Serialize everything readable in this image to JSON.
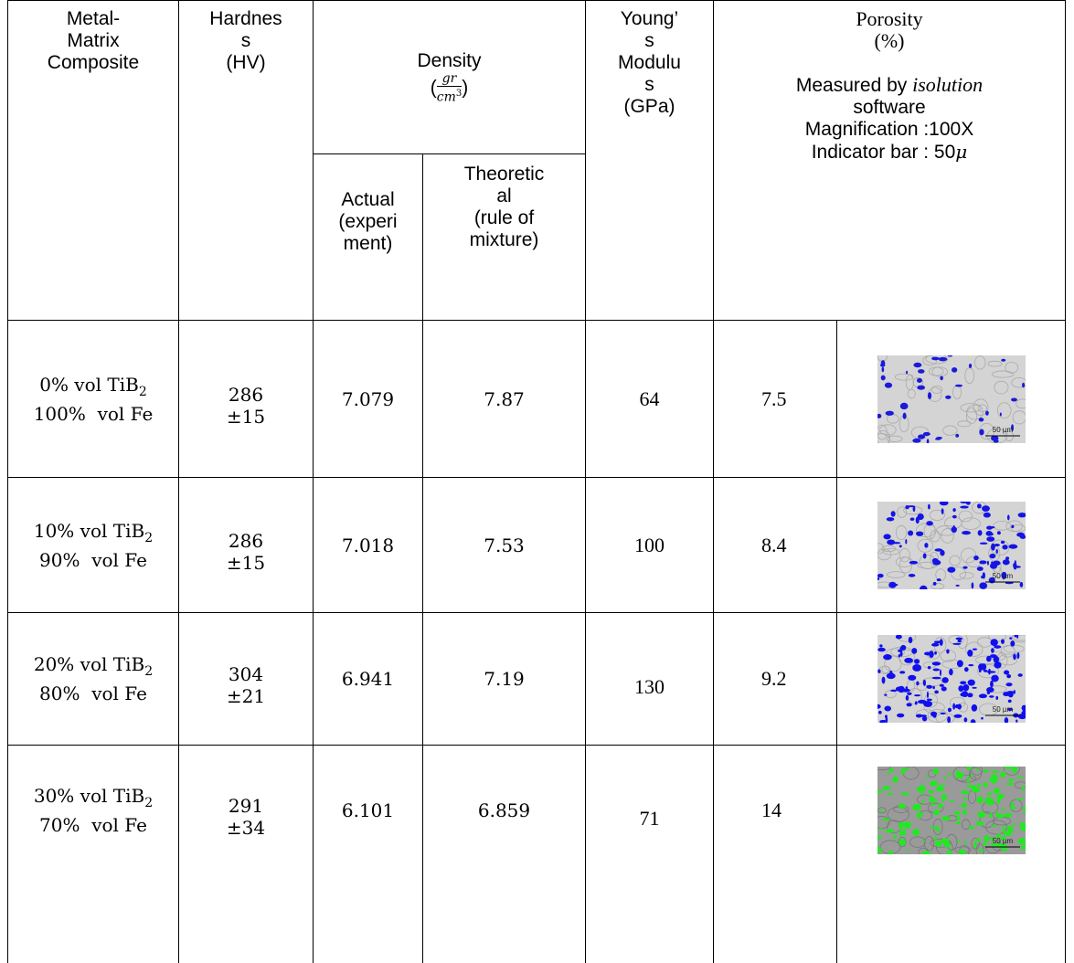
{
  "table": {
    "header": {
      "composite": [
        "Metal-",
        "Matrix",
        "Composite"
      ],
      "hardness": [
        "Hardnes",
        "s",
        "(HV)"
      ],
      "density": {
        "title": "Density",
        "open": "(",
        "num": "gr",
        "den": "cm",
        "exp": "3",
        "close": ")"
      },
      "actual": [
        "Actual",
        "(experi",
        "ment)"
      ],
      "theoretical": [
        "Theoretic",
        "al",
        "(rule of",
        "mixture)"
      ],
      "youngs": [
        "Young’",
        "s",
        "Modulu",
        "s",
        "(GPa)"
      ],
      "porosity": {
        "title": [
          "Porosity",
          "(%)"
        ],
        "measured": "Measured by ",
        "software_name": "isolution",
        "software": "software",
        "magnification": "Magnification :100X",
        "indicator": "Indicator bar : 50",
        "indicator_unit": "μ"
      }
    },
    "rows": [
      {
        "composite": "0% vol TiB",
        "subscript": "2",
        "matrix": "100%  vol Fe",
        "hardness": "286",
        "hardness_sd": "±15",
        "actual": "7.079",
        "theoretical": "7.87",
        "youngs": "64",
        "porosity": "7.5",
        "scale": "50 µm",
        "overlay_color": "#1a1adb"
      },
      {
        "composite": "10% vol TiB",
        "subscript": "2",
        "matrix": "90%  vol Fe",
        "hardness": "286",
        "hardness_sd": "±15",
        "actual": "7.018",
        "theoretical": "7.53",
        "youngs": "100",
        "porosity": "8.4",
        "scale": "50 µm",
        "overlay_color": "#1414e6"
      },
      {
        "composite": "20% vol TiB",
        "subscript": "2",
        "matrix": "80%  vol Fe",
        "hardness": "304",
        "hardness_sd": "±21",
        "actual": "6.941",
        "theoretical": "7.19",
        "youngs": "130",
        "porosity": "9.2",
        "scale": "50 µm",
        "overlay_color": "#1010ee"
      },
      {
        "composite": "30% vol TiB",
        "subscript": "2",
        "matrix": "70%  vol Fe",
        "hardness": "291",
        "hardness_sd": "±34",
        "actual": "6.101",
        "theoretical": "6.859",
        "youngs": "71",
        "porosity": "14",
        "scale": "50 µm",
        "overlay_color": "#22e822"
      }
    ]
  }
}
